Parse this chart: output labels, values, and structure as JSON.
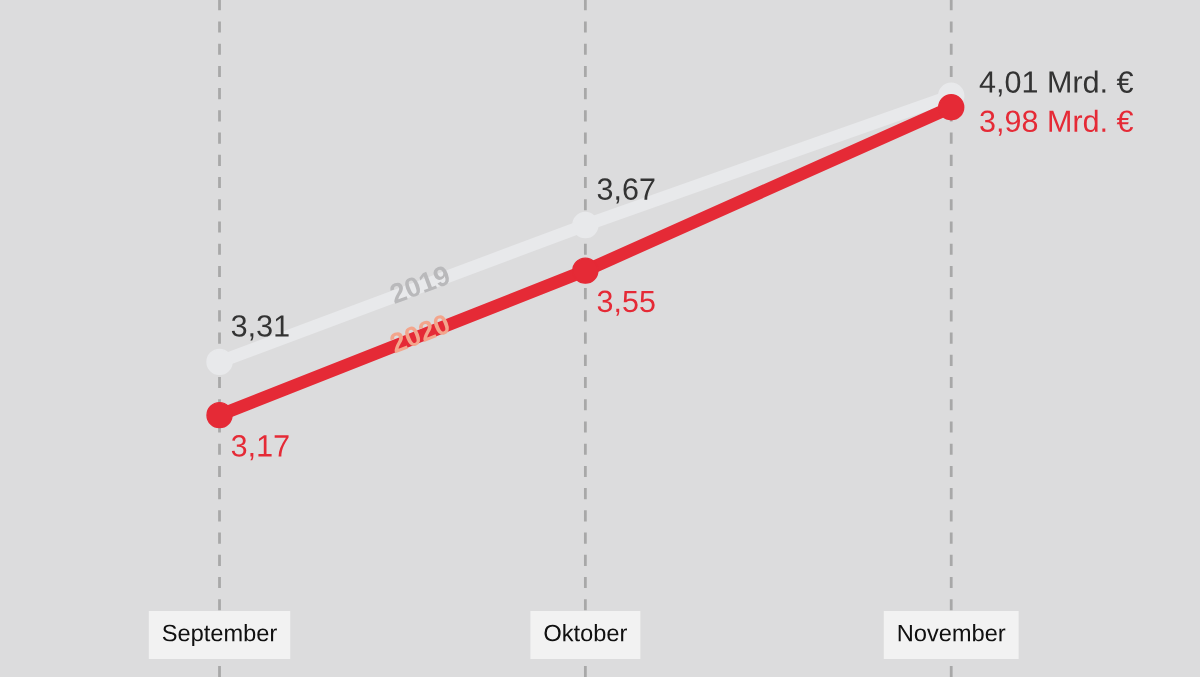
{
  "chart_data": {
    "type": "line",
    "categories": [
      "September",
      "Oktober",
      "November"
    ],
    "series": [
      {
        "name": "2019",
        "color": "#e8e9eb",
        "values": [
          3.31,
          3.67,
          4.01
        ],
        "value_labels": [
          "3,31",
          "3,67",
          "4,01 Mrd. €"
        ]
      },
      {
        "name": "2020",
        "color": "#e52a36",
        "values": [
          3.17,
          3.55,
          3.98
        ],
        "value_labels": [
          "3,17",
          "3,55",
          "3,98 Mrd. €"
        ]
      }
    ],
    "grid": "x",
    "marker": "circle",
    "line_style": "solid",
    "legend": false
  }
}
